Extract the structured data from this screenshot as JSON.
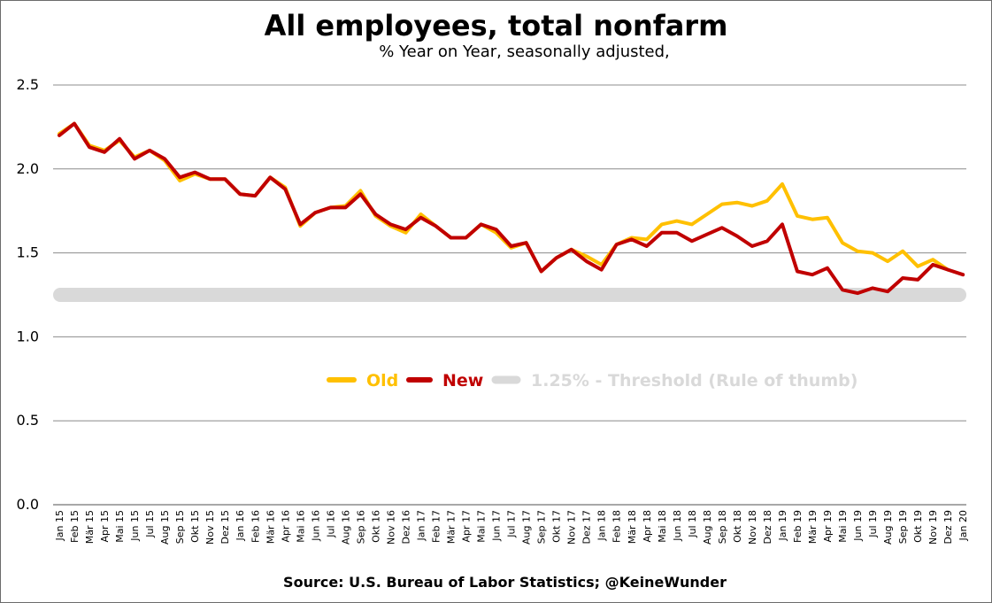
{
  "chart_data": {
    "type": "line",
    "title": "All employees, total nonfarm",
    "subtitle": "% Year on Year, seasonally adjusted,",
    "source": "Source: U.S. Bureau of Labor Statistics;  @KeineWunder",
    "ylim": [
      0,
      2.5
    ],
    "yticks": [
      "0.0",
      "0.5",
      "1.0",
      "1.5",
      "2.0",
      "2.5"
    ],
    "grid": true,
    "legend_position": "center",
    "categories": [
      "Jan 15",
      "Feb 15",
      "Mär 15",
      "Apr 15",
      "Mai 15",
      "Jun 15",
      "Jul 15",
      "Aug 15",
      "Sep 15",
      "Okt 15",
      "Nov 15",
      "Dez 15",
      "Jan 16",
      "Feb 16",
      "Mär 16",
      "Apr 16",
      "Mai 16",
      "Jun 16",
      "Jul 16",
      "Aug 16",
      "Sep 16",
      "Okt 16",
      "Nov 16",
      "Dez 16",
      "Jan 17",
      "Feb 17",
      "Mär 17",
      "Apr 17",
      "Mai 17",
      "Jun 17",
      "Jul 17",
      "Aug 17",
      "Sep 17",
      "Okt 17",
      "Nov 17",
      "Dez 17",
      "Jan 18",
      "Feb 18",
      "Mär 18",
      "Apr 18",
      "Mai 18",
      "Jun 18",
      "Jul 18",
      "Aug 18",
      "Sep 18",
      "Okt 18",
      "Nov 18",
      "Dez 18",
      "Jan 19",
      "Feb 19",
      "Mär 19",
      "Apr 19",
      "Mai 19",
      "Jun 19",
      "Jul 19",
      "Aug 19",
      "Sep 19",
      "Okt 19",
      "Nov 19",
      "Dez 19",
      "Jan 20"
    ],
    "series": [
      {
        "name": "Old",
        "color": "#FFC000",
        "values": [
          2.21,
          2.27,
          2.14,
          2.11,
          2.17,
          2.07,
          2.11,
          2.05,
          1.93,
          1.97,
          1.94,
          1.94,
          1.85,
          1.84,
          1.95,
          1.89,
          1.66,
          1.74,
          1.77,
          1.78,
          1.87,
          1.72,
          1.66,
          1.62,
          1.73,
          1.66,
          1.59,
          1.59,
          1.67,
          1.62,
          1.53,
          1.56,
          1.39,
          1.47,
          1.52,
          1.48,
          1.43,
          1.55,
          1.59,
          1.58,
          1.67,
          1.69,
          1.67,
          1.73,
          1.79,
          1.8,
          1.78,
          1.81,
          1.91,
          1.72,
          1.7,
          1.71,
          1.56,
          1.51,
          1.5,
          1.45,
          1.51,
          1.42,
          1.46,
          1.4,
          null
        ]
      },
      {
        "name": "New",
        "color": "#C00000",
        "values": [
          2.2,
          2.27,
          2.13,
          2.1,
          2.18,
          2.06,
          2.11,
          2.06,
          1.95,
          1.98,
          1.94,
          1.94,
          1.85,
          1.84,
          1.95,
          1.88,
          1.67,
          1.74,
          1.77,
          1.77,
          1.85,
          1.73,
          1.67,
          1.64,
          1.71,
          1.66,
          1.59,
          1.59,
          1.67,
          1.64,
          1.54,
          1.56,
          1.39,
          1.47,
          1.52,
          1.45,
          1.4,
          1.55,
          1.58,
          1.54,
          1.62,
          1.62,
          1.57,
          1.61,
          1.65,
          1.6,
          1.54,
          1.57,
          1.67,
          1.39,
          1.37,
          1.41,
          1.28,
          1.26,
          1.29,
          1.27,
          1.35,
          1.34,
          1.43,
          1.4,
          1.37
        ]
      }
    ],
    "threshold": {
      "name": "1.25% - Threshold (Rule of thumb)",
      "value": 1.25,
      "color": "#D9D9D9"
    }
  }
}
